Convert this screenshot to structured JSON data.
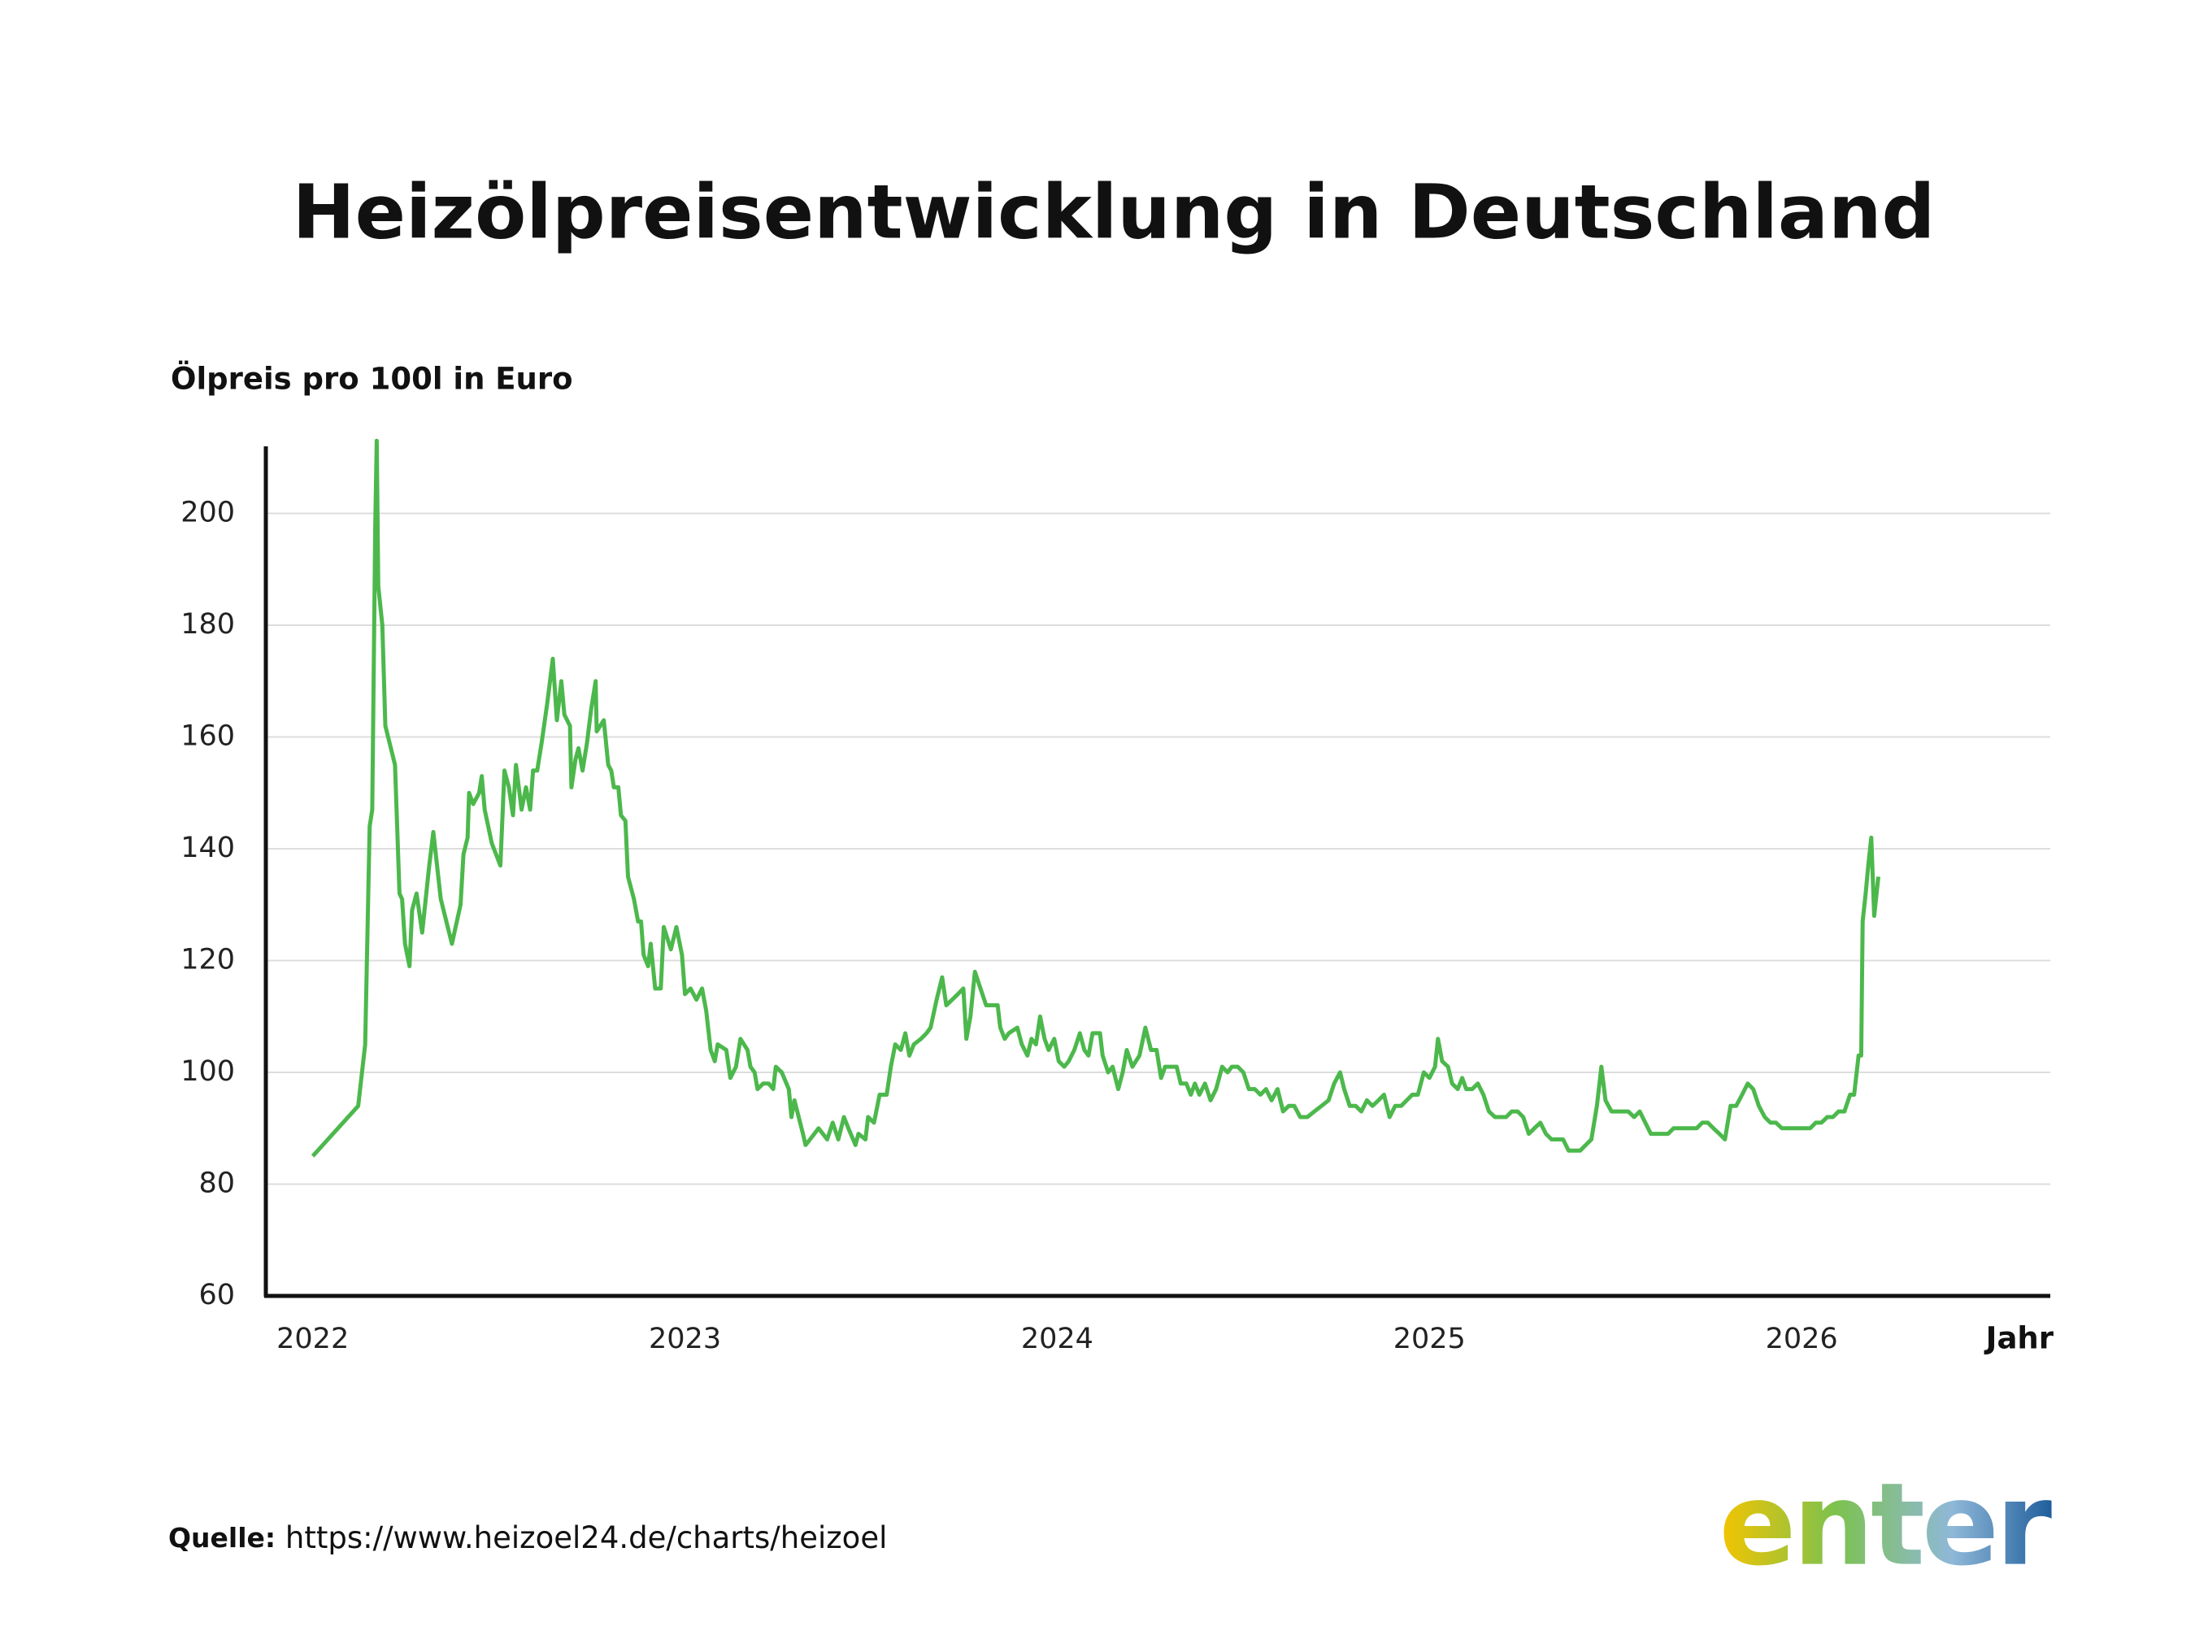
{
  "chart_data": {
    "type": "line",
    "title": "Heizölpreisentwicklung in Deutschland",
    "y_label": "Ölpreis pro 100l in Euro",
    "x_label": "Jahr",
    "source_label": "Quelle:",
    "source": "https://www.heizoel24.de/charts/heizoel",
    "logo": "enter",
    "color": "#4cb84c",
    "grid": true,
    "xlim": [
      2021.874,
      2026.668
    ],
    "xticks": [
      2022,
      2023,
      2024,
      2025,
      2026
    ],
    "ylim": [
      60,
      212
    ],
    "yticks": [
      60,
      80,
      100,
      120,
      140,
      160,
      180,
      200
    ],
    "x": [
      2022.0,
      2022.122,
      2022.141,
      2022.153,
      2022.16,
      2022.168,
      2022.172,
      2022.176,
      2022.187,
      2022.195,
      2022.221,
      2022.233,
      2022.24,
      2022.248,
      2022.26,
      2022.267,
      2022.279,
      2022.294,
      2022.313,
      2022.324,
      2022.344,
      2022.374,
      2022.397,
      2022.405,
      2022.416,
      2022.42,
      2022.431,
      2022.447,
      2022.454,
      2022.462,
      2022.481,
      2022.504,
      2022.515,
      2022.527,
      2022.538,
      2022.546,
      2022.561,
      2022.573,
      2022.584,
      2022.592,
      2022.603,
      2022.615,
      2022.63,
      2022.645,
      2022.656,
      2022.668,
      2022.676,
      2022.691,
      2022.695,
      2022.706,
      2022.714,
      2022.725,
      2022.737,
      2022.748,
      2022.76,
      2022.763,
      2022.782,
      2022.794,
      2022.802,
      2022.809,
      2022.821,
      2022.828,
      2022.84,
      2022.847,
      2022.863,
      2022.874,
      2022.882,
      2022.889,
      2022.901,
      2022.908,
      2022.92,
      2022.935,
      2022.943,
      2022.962,
      2022.977,
      2022.992,
      2023.0,
      2023.015,
      2023.031,
      2023.046,
      2023.057,
      2023.069,
      2023.08,
      2023.088,
      2023.111,
      2023.122,
      2023.137,
      2023.149,
      2023.168,
      2023.176,
      2023.187,
      2023.195,
      2023.21,
      2023.225,
      2023.237,
      2023.244,
      2023.26,
      2023.279,
      2023.286,
      2023.294,
      2023.317,
      2023.324,
      2023.336,
      2023.359,
      2023.382,
      2023.397,
      2023.412,
      2023.427,
      2023.439,
      2023.458,
      2023.466,
      2023.485,
      2023.492,
      2023.508,
      2023.523,
      2023.542,
      2023.553,
      2023.565,
      2023.58,
      2023.592,
      2023.603,
      2023.615,
      2023.634,
      2023.649,
      2023.66,
      2023.676,
      2023.691,
      2023.702,
      2023.718,
      2023.733,
      2023.748,
      2023.756,
      2023.767,
      2023.779,
      2023.794,
      2023.809,
      2023.824,
      2023.84,
      2023.847,
      2023.859,
      2023.87,
      2023.893,
      2023.905,
      2023.92,
      2023.931,
      2023.943,
      2023.954,
      2023.966,
      2023.977,
      2023.992,
      2024.004,
      2024.019,
      2024.031,
      2024.046,
      2024.061,
      2024.073,
      2024.084,
      2024.095,
      2024.115,
      2024.122,
      2024.137,
      2024.149,
      2024.164,
      2024.176,
      2024.187,
      2024.202,
      2024.221,
      2024.237,
      2024.252,
      2024.267,
      2024.279,
      2024.29,
      2024.305,
      2024.321,
      2024.332,
      2024.347,
      2024.359,
      2024.37,
      2024.382,
      2024.397,
      2024.412,
      2024.427,
      2024.443,
      2024.458,
      2024.469,
      2024.485,
      2024.5,
      2024.515,
      2024.531,
      2024.546,
      2024.561,
      2024.576,
      2024.592,
      2024.607,
      2024.622,
      2024.637,
      2024.653,
      2024.672,
      2024.691,
      2024.71,
      2024.729,
      2024.744,
      2024.76,
      2024.771,
      2024.786,
      2024.802,
      2024.817,
      2024.832,
      2024.847,
      2024.863,
      2024.878,
      2024.893,
      2024.908,
      2024.924,
      2024.939,
      2024.954,
      2024.969,
      2024.985,
      2025.0,
      2025.015,
      2025.023,
      2025.034,
      2025.05,
      2025.061,
      2025.076,
      2025.088,
      2025.099,
      2025.115,
      2025.13,
      2025.145,
      2025.16,
      2025.176,
      2025.191,
      2025.206,
      2025.221,
      2025.237,
      2025.252,
      2025.267,
      2025.282,
      2025.298,
      2025.313,
      2025.328,
      2025.344,
      2025.359,
      2025.374,
      2025.389,
      2025.405,
      2025.42,
      2025.435,
      2025.45,
      2025.462,
      2025.473,
      2025.489,
      2025.504,
      2025.519,
      2025.534,
      2025.55,
      2025.565,
      2025.58,
      2025.595,
      2025.611,
      2025.626,
      2025.641,
      2025.656,
      2025.672,
      2025.687,
      2025.702,
      2025.718,
      2025.733,
      2025.748,
      2025.763,
      2025.779,
      2025.794,
      2025.809,
      2025.824,
      2025.84,
      2025.855,
      2025.87,
      2025.885,
      2025.901,
      2025.916,
      2025.931,
      2025.947,
      2025.962,
      2025.977,
      2025.992,
      2026.008,
      2026.023,
      2026.038,
      2026.053,
      2026.069,
      2026.084,
      2026.099,
      2026.115,
      2026.13,
      2026.141,
      2026.153,
      2026.16,
      2026.164,
      2026.172,
      2026.179,
      2026.187,
      2026.195,
      2026.206
    ],
    "values": [
      85,
      94,
      105,
      144,
      147,
      198,
      213,
      187,
      180,
      162,
      155,
      132,
      131,
      123,
      119,
      129,
      132,
      125,
      137,
      143,
      131,
      123,
      130,
      139,
      142,
      150,
      148,
      150,
      153,
      147,
      141,
      137,
      154,
      151,
      146,
      155,
      147,
      151,
      147,
      154,
      154,
      159,
      166,
      174,
      163,
      170,
      164,
      162,
      151,
      156,
      158,
      154,
      159,
      165,
      170,
      161,
      163,
      155,
      154,
      151,
      151,
      146,
      145,
      135,
      131,
      127,
      127,
      121,
      119,
      123,
      115,
      115,
      126,
      122,
      126,
      121,
      114,
      115,
      113,
      115,
      111,
      104,
      102,
      105,
      104,
      99,
      101,
      106,
      104,
      101,
      100,
      97,
      98,
      98,
      97,
      101,
      100,
      97,
      92,
      95,
      89,
      87,
      88,
      90,
      88,
      91,
      88,
      92,
      90,
      87,
      89,
      88,
      92,
      91,
      96,
      96,
      101,
      105,
      104,
      107,
      103,
      105,
      106,
      107,
      108,
      113,
      117,
      112,
      113,
      114,
      115,
      106,
      110,
      118,
      115,
      112,
      112,
      112,
      108,
      106,
      107,
      108,
      105,
      103,
      106,
      105,
      110,
      106,
      104,
      106,
      102,
      101,
      102,
      104,
      107,
      104,
      103,
      107,
      107,
      103,
      100,
      101,
      97,
      100,
      104,
      101,
      103,
      108,
      104,
      104,
      99,
      101,
      101,
      101,
      98,
      98,
      96,
      98,
      96,
      98,
      95,
      97,
      101,
      100,
      101,
      101,
      100,
      97,
      97,
      96,
      97,
      95,
      97,
      93,
      94,
      94,
      92,
      92,
      93,
      94,
      95,
      98,
      100,
      97,
      94,
      94,
      93,
      95,
      94,
      95,
      96,
      92,
      94,
      94,
      95,
      96,
      96,
      100,
      99,
      101,
      106,
      102,
      101,
      98,
      97,
      99,
      97,
      97,
      98,
      96,
      93,
      92,
      92,
      92,
      93,
      93,
      92,
      89,
      90,
      91,
      89,
      88,
      88,
      88,
      86,
      86,
      86,
      87,
      88,
      94,
      101,
      95,
      93,
      93,
      93,
      93,
      92,
      93,
      91,
      89,
      89,
      89,
      89,
      90,
      90,
      90,
      90,
      90,
      91,
      91,
      90,
      89,
      88,
      94,
      94,
      96,
      98,
      97,
      94,
      92,
      91,
      91,
      90,
      90,
      90,
      90,
      90,
      90,
      91,
      91,
      92,
      92,
      93,
      93,
      96,
      96,
      103,
      103,
      127,
      132,
      137,
      142,
      128,
      135
    ]
  }
}
